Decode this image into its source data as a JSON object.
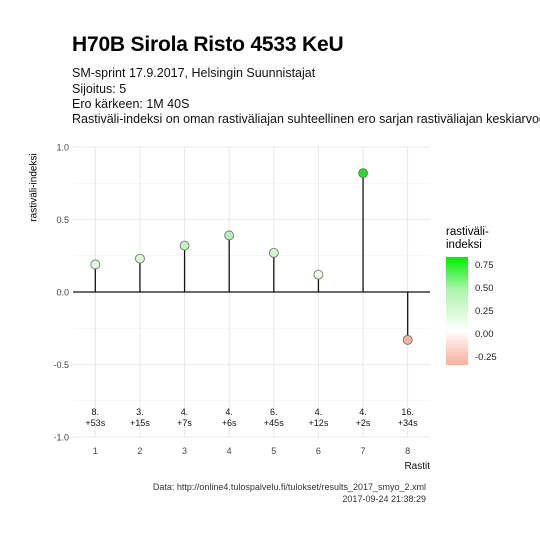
{
  "header": {
    "title": "H70B Sirola Risto 4533 KeU",
    "subtitle_lines": [
      "SM-sprint 17.9.2017, Helsingin Suunnistajat",
      "Sijoitus: 5",
      "Ero kärkeen: 1M 40S",
      "Rastiväli-indeksi on oman rastiväliajan suhteellinen ero sarjan rastiväliajan keskiarvoon"
    ]
  },
  "legend": {
    "title_line1": "rastiväli-",
    "title_line2": "indeksi",
    "ticks": [
      "0.75",
      "0.50",
      "0.25",
      "0.00",
      "-0.25"
    ],
    "colors": {
      "high": "#00ee00",
      "zero": "#ffffff",
      "low": "#f9b09c"
    }
  },
  "caption": {
    "source": "Data: http://online4.tulospalvelu.fi/tulokset/results_2017_smyo_2.xml",
    "timestamp": "2017-09-24 21:38:29"
  },
  "chart_data": {
    "type": "lollipop",
    "xlabel": "Rastit",
    "ylabel": "rastiväli-indeksi",
    "ylim": [
      -1.0,
      1.0
    ],
    "yticks": [
      "-1.0",
      "-0.5",
      "0.0",
      "0.5",
      "1.0"
    ],
    "x": [
      1,
      2,
      3,
      4,
      5,
      6,
      7,
      8
    ],
    "xticks": [
      "1",
      "2",
      "3",
      "4",
      "5",
      "6",
      "7",
      "8"
    ],
    "values": [
      0.19,
      0.23,
      0.32,
      0.39,
      0.27,
      0.12,
      0.82,
      -0.33
    ],
    "colors": [
      "#e4f9de",
      "#dbf8d5",
      "#c6f4c0",
      "#b8f2b2",
      "#d3f6cc",
      "#eefaea",
      "#22e022",
      "#f6b4a0"
    ],
    "labels_rank": [
      "8.",
      "3.",
      "4.",
      "4.",
      "6.",
      "4.",
      "4.",
      "16."
    ],
    "labels_diff": [
      "+53s",
      "+15s",
      "+7s",
      "+6s",
      "+45s",
      "+12s",
      "+2s",
      "+34s"
    ],
    "grid": true
  }
}
